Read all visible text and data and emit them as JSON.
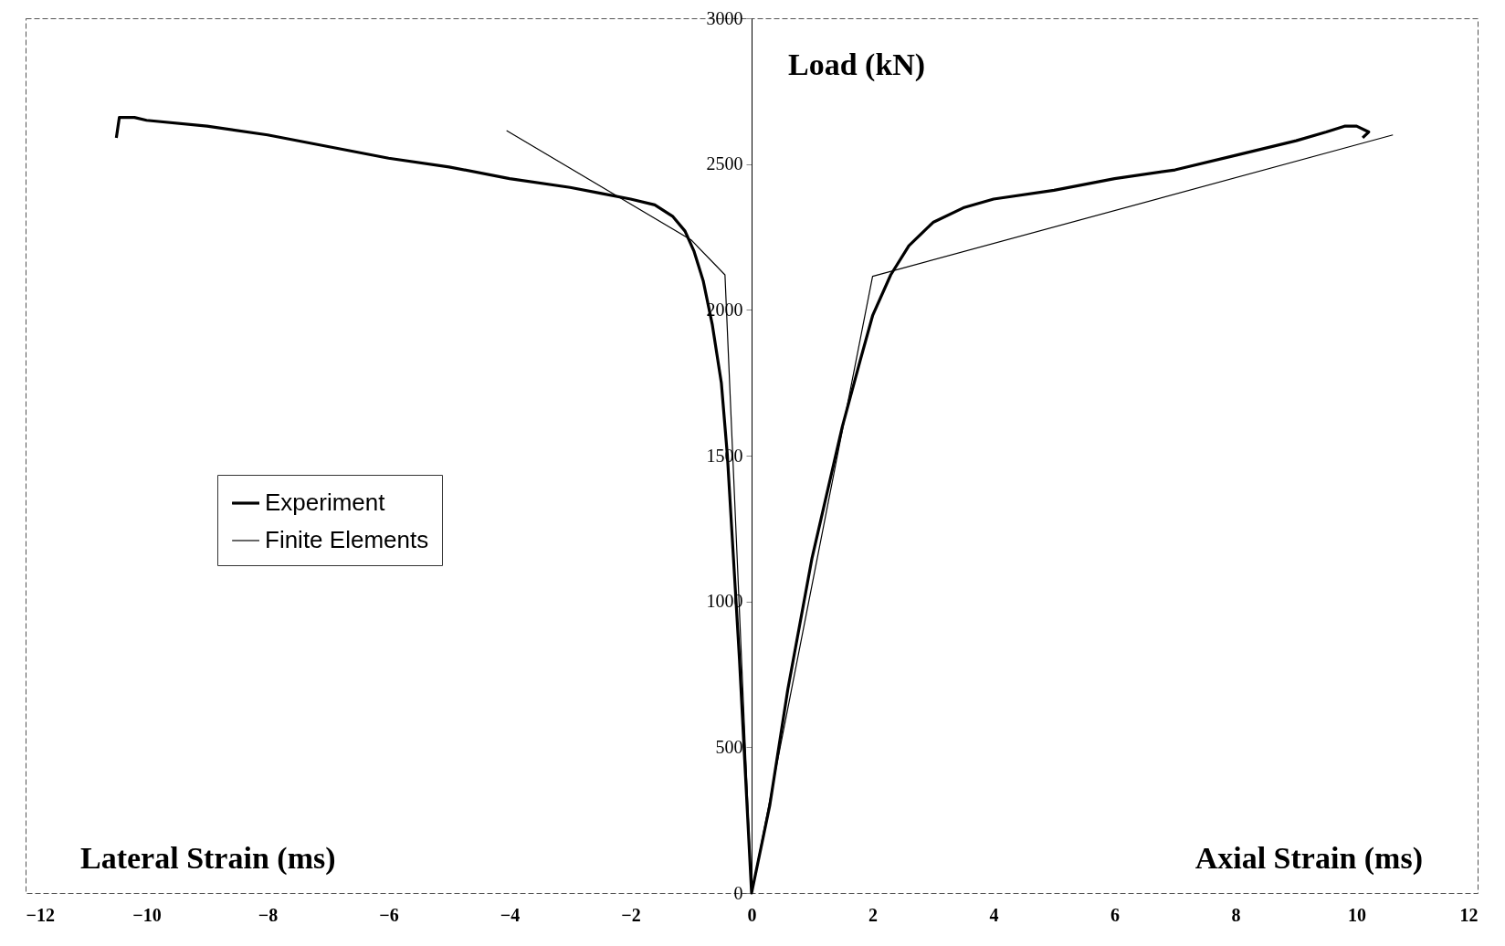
{
  "chart_data": {
    "type": "line",
    "ylabel": "Load (kN)",
    "annotations": [
      "Lateral Strain (ms)",
      "Axial Strain (ms)"
    ],
    "xlim": [
      -12,
      12
    ],
    "xticks": [
      -12,
      -10,
      -8,
      -6,
      -4,
      -2,
      0,
      2,
      4,
      6,
      8,
      10,
      12
    ],
    "ylim": [
      0,
      3000
    ],
    "yticks": [
      0,
      500,
      1000,
      1500,
      2000,
      2500,
      3000
    ],
    "grid": false,
    "legend": "left",
    "marker": "none",
    "line_style": "solid",
    "series": [
      {
        "name": "Experiment",
        "color": "#000000",
        "x": [
          -10.5,
          -10.45,
          -10.2,
          -10,
          -9,
          -8,
          -7,
          -6,
          -5,
          -4,
          -3,
          -2.5,
          -2,
          -1.6,
          -1.3,
          -1.1,
          -0.95,
          -0.8,
          -0.65,
          -0.5,
          -0.4,
          -0.3,
          -0.2,
          -0.1,
          0,
          0.3,
          0.6,
          1,
          1.5,
          1.8,
          2,
          2.3,
          2.6,
          3,
          3.5,
          4,
          5,
          6,
          7,
          8,
          9,
          9.5,
          9.8,
          10,
          10.2,
          10.1
        ],
        "values": [
          2590,
          2660,
          2660,
          2650,
          2630,
          2600,
          2560,
          2520,
          2490,
          2450,
          2420,
          2400,
          2380,
          2360,
          2320,
          2270,
          2200,
          2100,
          1950,
          1750,
          1500,
          1150,
          800,
          400,
          0,
          300,
          700,
          1150,
          1600,
          1830,
          1980,
          2120,
          2220,
          2300,
          2350,
          2380,
          2410,
          2450,
          2480,
          2530,
          2580,
          2610,
          2630,
          2630,
          2610,
          2590
        ]
      },
      {
        "name": "Finite Elements",
        "color": "#000000",
        "x": [
          -4.05,
          -1.0,
          -0.44,
          0,
          2.0,
          10.6
        ],
        "values": [
          2615,
          2240,
          2120,
          0,
          2115,
          2600
        ]
      }
    ]
  }
}
